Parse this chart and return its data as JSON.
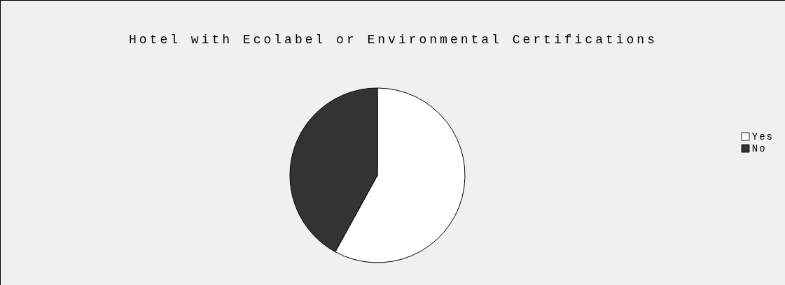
{
  "chart_data": {
    "type": "pie",
    "title": "Hotel with Ecolabel or Environmental Certifications",
    "categories": [
      "Yes",
      "No"
    ],
    "values": [
      58,
      42
    ],
    "colors": [
      "#ffffff",
      "#333333"
    ],
    "legend": "right"
  }
}
